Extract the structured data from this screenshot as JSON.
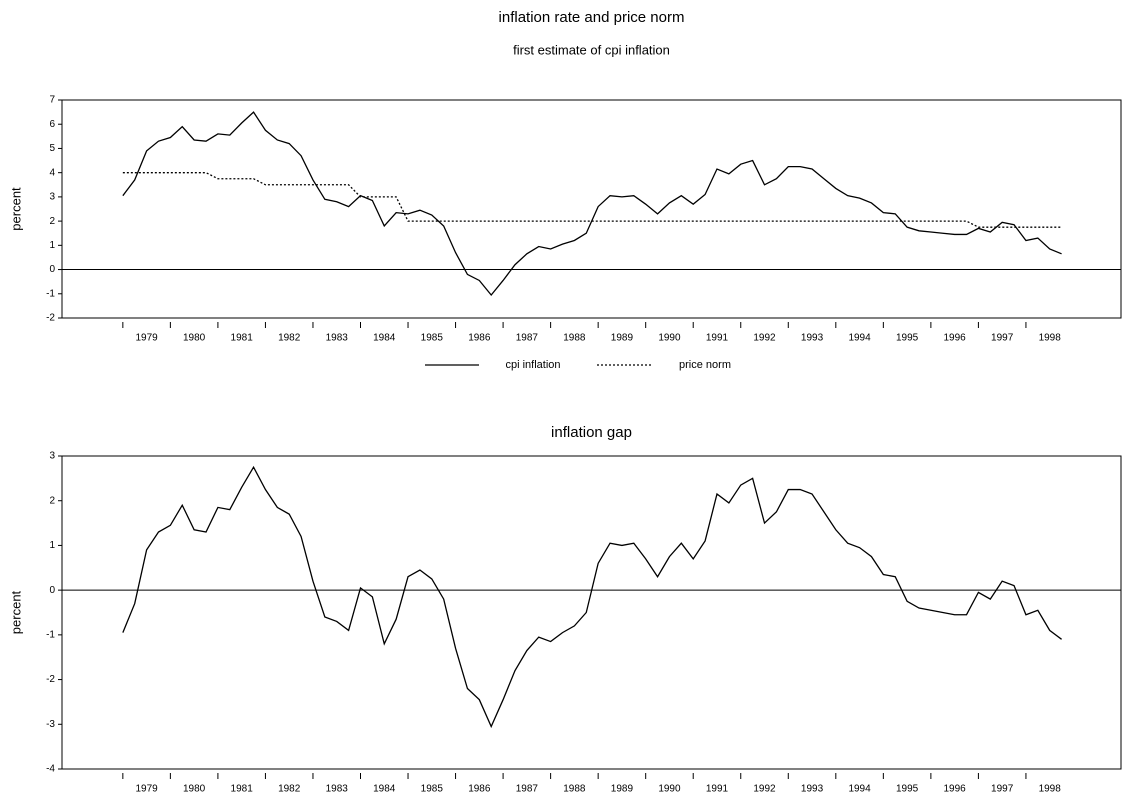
{
  "chart_data": [
    {
      "type": "line",
      "title": "inflation rate and price norm",
      "subtitle": "first estimate of cpi inflation",
      "y_label": "percent",
      "x": [
        1979,
        1979.25,
        1979.5,
        1979.75,
        1980,
        1980.25,
        1980.5,
        1980.75,
        1981,
        1981.25,
        1981.5,
        1981.75,
        1982,
        1982.25,
        1982.5,
        1982.75,
        1983,
        1983.25,
        1983.5,
        1983.75,
        1984,
        1984.25,
        1984.5,
        1984.75,
        1985,
        1985.25,
        1985.5,
        1985.75,
        1986,
        1986.25,
        1986.5,
        1986.75,
        1987,
        1987.25,
        1987.5,
        1987.75,
        1988,
        1988.25,
        1988.5,
        1988.75,
        1989,
        1989.25,
        1989.5,
        1989.75,
        1990,
        1990.25,
        1990.5,
        1990.75,
        1991,
        1991.25,
        1991.5,
        1991.75,
        1992,
        1992.25,
        1992.5,
        1992.75,
        1993,
        1993.25,
        1993.5,
        1993.75,
        1994,
        1994.25,
        1994.5,
        1994.75,
        1995,
        1995.25,
        1995.5,
        1995.75,
        1996,
        1996.25,
        1996.5,
        1996.75,
        1997,
        1997.25,
        1997.5,
        1997.75,
        1998,
        1998.25,
        1998.5,
        1998.75
      ],
      "series": [
        {
          "name": "cpi inflation",
          "color": "#000000",
          "dash": "solid",
          "values": [
            3.05,
            3.7,
            4.9,
            5.3,
            5.45,
            5.9,
            5.35,
            5.3,
            5.6,
            5.55,
            6.05,
            6.5,
            5.75,
            5.35,
            5.2,
            4.7,
            3.7,
            2.9,
            2.8,
            2.6,
            3.05,
            2.85,
            1.8,
            2.35,
            2.3,
            2.45,
            2.25,
            1.8,
            0.7,
            -0.2,
            -0.45,
            -1.05,
            -0.45,
            0.2,
            0.65,
            0.95,
            0.85,
            1.05,
            1.2,
            1.5,
            2.6,
            3.05,
            3.0,
            3.05,
            2.7,
            2.3,
            2.75,
            3.05,
            2.7,
            3.1,
            4.15,
            3.95,
            4.35,
            4.5,
            3.5,
            3.75,
            4.25,
            4.25,
            4.15,
            3.75,
            3.35,
            3.05,
            2.95,
            2.75,
            2.35,
            2.3,
            1.75,
            1.6,
            1.55,
            1.5,
            1.45,
            1.45,
            1.7,
            1.55,
            1.95,
            1.85,
            1.2,
            1.3,
            0.85,
            0.65
          ]
        },
        {
          "name": "price norm",
          "color": "#000000",
          "dash": "dotted",
          "values": [
            4,
            4,
            4,
            4,
            4,
            4,
            4,
            4,
            3.75,
            3.75,
            3.75,
            3.75,
            3.5,
            3.5,
            3.5,
            3.5,
            3.5,
            3.5,
            3.5,
            3.5,
            3,
            3,
            3,
            3,
            2,
            2,
            2,
            2,
            2,
            2,
            2,
            2,
            2,
            2,
            2,
            2,
            2,
            2,
            2,
            2,
            2,
            2,
            2,
            2,
            2,
            2,
            2,
            2,
            2,
            2,
            2,
            2,
            2,
            2,
            2,
            2,
            2,
            2,
            2,
            2,
            2,
            2,
            2,
            2,
            2,
            2,
            2,
            2,
            2,
            2,
            2,
            2,
            1.75,
            1.75,
            1.75,
            1.75,
            1.75,
            1.75,
            1.75,
            1.75
          ]
        }
      ],
      "xlim": [
        1977.72,
        2000
      ],
      "xticks": [
        1979,
        1980,
        1981,
        1982,
        1983,
        1984,
        1985,
        1986,
        1987,
        1988,
        1989,
        1990,
        1991,
        1992,
        1993,
        1994,
        1995,
        1996,
        1997,
        1998
      ],
      "ylim": [
        -2,
        7
      ],
      "yticks": [
        -2,
        -1,
        0,
        1,
        2,
        3,
        4,
        5,
        6,
        7
      ],
      "zero_line": true,
      "legend": "bottom"
    },
    {
      "type": "line",
      "title": "inflation gap",
      "y_label": "percent",
      "x": [
        1979,
        1979.25,
        1979.5,
        1979.75,
        1980,
        1980.25,
        1980.5,
        1980.75,
        1981,
        1981.25,
        1981.5,
        1981.75,
        1982,
        1982.25,
        1982.5,
        1982.75,
        1983,
        1983.25,
        1983.5,
        1983.75,
        1984,
        1984.25,
        1984.5,
        1984.75,
        1985,
        1985.25,
        1985.5,
        1985.75,
        1986,
        1986.25,
        1986.5,
        1986.75,
        1987,
        1987.25,
        1987.5,
        1987.75,
        1988,
        1988.25,
        1988.5,
        1988.75,
        1989,
        1989.25,
        1989.5,
        1989.75,
        1990,
        1990.25,
        1990.5,
        1990.75,
        1991,
        1991.25,
        1991.5,
        1991.75,
        1992,
        1992.25,
        1992.5,
        1992.75,
        1993,
        1993.25,
        1993.5,
        1993.75,
        1994,
        1994.25,
        1994.5,
        1994.75,
        1995,
        1995.25,
        1995.5,
        1995.75,
        1996,
        1996.25,
        1996.5,
        1996.75,
        1997,
        1997.25,
        1997.5,
        1997.75,
        1998,
        1998.25,
        1998.5,
        1998.75
      ],
      "series": [
        {
          "color": "#000000",
          "dash": "solid",
          "values": [
            -0.95,
            -0.3,
            0.9,
            1.3,
            1.45,
            1.9,
            1.35,
            1.3,
            1.85,
            1.8,
            2.3,
            2.75,
            2.25,
            1.85,
            1.7,
            1.2,
            0.2,
            -0.6,
            -0.7,
            -0.9,
            0.05,
            -0.15,
            -1.2,
            -0.65,
            0.3,
            0.45,
            0.25,
            -0.2,
            -1.3,
            -2.2,
            -2.45,
            -3.05,
            -2.45,
            -1.8,
            -1.35,
            -1.05,
            -1.15,
            -0.95,
            -0.8,
            -0.5,
            0.6,
            1.05,
            1.0,
            1.05,
            0.7,
            0.3,
            0.75,
            1.05,
            0.7,
            1.1,
            2.15,
            1.95,
            2.35,
            2.5,
            1.5,
            1.75,
            2.25,
            2.25,
            2.15,
            1.75,
            1.35,
            1.05,
            0.95,
            0.75,
            0.35,
            0.3,
            -0.25,
            -0.4,
            -0.45,
            -0.5,
            -0.55,
            -0.55,
            -0.05,
            -0.2,
            0.2,
            0.1,
            -0.55,
            -0.45,
            -0.9,
            -1.1
          ]
        }
      ],
      "xlim": [
        1977.72,
        2000
      ],
      "xticks": [
        1979,
        1980,
        1981,
        1982,
        1983,
        1984,
        1985,
        1986,
        1987,
        1988,
        1989,
        1990,
        1991,
        1992,
        1993,
        1994,
        1995,
        1996,
        1997,
        1998
      ],
      "ylim": [
        -4,
        3
      ],
      "yticks": [
        -4,
        -3,
        -2,
        -1,
        0,
        1,
        2,
        3
      ],
      "zero_line": true
    }
  ]
}
